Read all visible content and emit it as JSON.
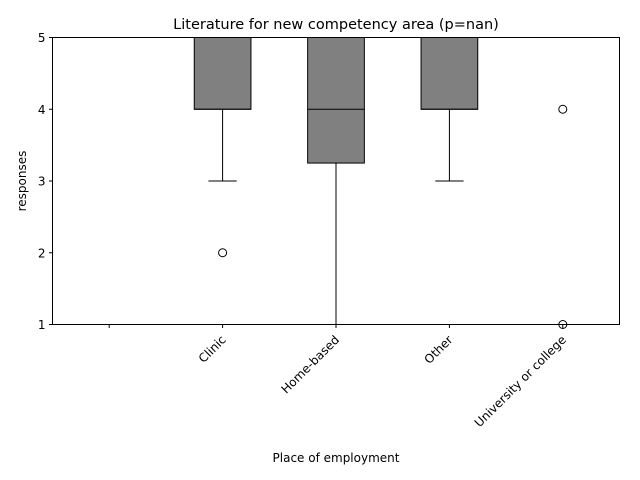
{
  "chart_data": {
    "type": "box",
    "title": "Literature for new competency area (p=nan)",
    "xlabel": "Place of employment",
    "ylabel": "responses",
    "ylim": [
      1,
      5
    ],
    "yticks": [
      1,
      2,
      3,
      4,
      5
    ],
    "categories": [
      "",
      "Clinic",
      "Home-based",
      "Other",
      "University or college"
    ],
    "boxes": [
      {
        "category": "",
        "empty": true
      },
      {
        "category": "Clinic",
        "q1": 4,
        "median": 4,
        "q3": 5,
        "whisker_low": 3,
        "whisker_high": 5,
        "outliers": [
          2
        ]
      },
      {
        "category": "Home-based",
        "q1": 3.25,
        "median": 4,
        "q3": 5,
        "whisker_low": 1,
        "whisker_high": 5,
        "outliers": []
      },
      {
        "category": "Other",
        "q1": 4,
        "median": 4,
        "q3": 5,
        "whisker_low": 3,
        "whisker_high": 5,
        "outliers": []
      },
      {
        "category": "University or college",
        "q1": 5,
        "median": 5,
        "q3": 5,
        "whisker_low": 5,
        "whisker_high": 5,
        "outliers": [
          4,
          1
        ]
      }
    ],
    "box_color": "#808080",
    "line_color": "#000000",
    "grid": false,
    "legend": "none"
  }
}
